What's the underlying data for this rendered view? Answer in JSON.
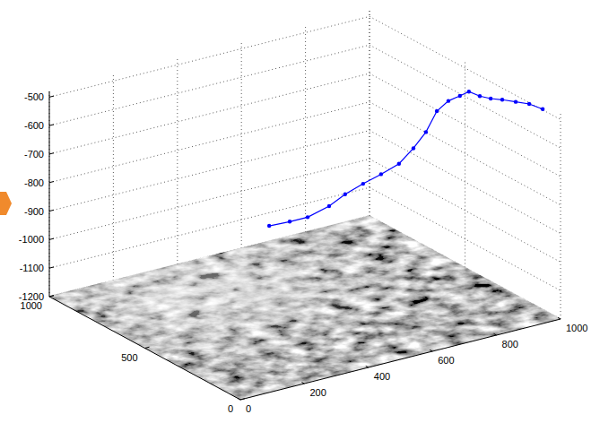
{
  "chart_data": {
    "type": "line",
    "x": [
      627,
      666,
      697,
      739,
      764,
      795,
      826,
      857,
      877,
      891,
      900,
      911,
      922,
      925,
      934,
      943,
      954,
      971,
      988,
      992
    ],
    "y": [
      900,
      858,
      816,
      774,
      732,
      690,
      648,
      606,
      564,
      522,
      480,
      438,
      396,
      354,
      312,
      270,
      228,
      186,
      144,
      80
    ],
    "z": [
      -1093,
      -1074,
      -1052,
      -1010,
      -960,
      -917,
      -877,
      -834,
      -770,
      -702,
      -616,
      -568,
      -538,
      -509,
      -512,
      -508,
      -500,
      -497,
      -494,
      -490
    ],
    "xlim": [
      0,
      1000
    ],
    "ylim": [
      0,
      1000
    ],
    "zlim": [
      -1200,
      -480
    ],
    "xticks": [
      0,
      200,
      400,
      600,
      800,
      1000
    ],
    "yticks": [
      0,
      500,
      1000
    ],
    "zticks": [
      -1200,
      -1100,
      -1000,
      -900,
      -800,
      -700,
      -600,
      -500
    ],
    "grid": true,
    "color": "#0000ff",
    "marker": "point",
    "line_style": "solid"
  }
}
